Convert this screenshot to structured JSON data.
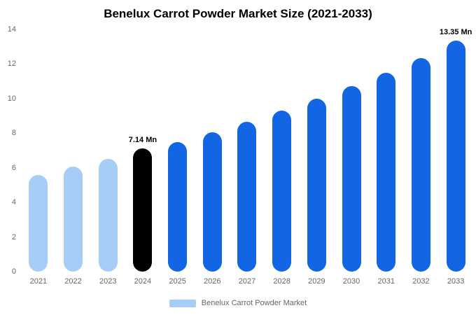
{
  "colors": {
    "historical_light_blue": "#A6CDF5",
    "forecast_blue": "#1266E3",
    "highlight_black": "#000000",
    "axis_text": "#666666",
    "title_text": "#000000",
    "background": "#FFFFFF"
  },
  "chart_data": {
    "type": "bar",
    "title": "Benelux Carrot Powder Market Size (2021-2033)",
    "xlabel": "",
    "ylabel": "",
    "ylim": [
      0,
      14
    ],
    "yticks": [
      0,
      2,
      4,
      6,
      8,
      10,
      12,
      14
    ],
    "grid": false,
    "categories": [
      "2021",
      "2022",
      "2023",
      "2024",
      "2025",
      "2026",
      "2027",
      "2028",
      "2029",
      "2030",
      "2031",
      "2032",
      "2033"
    ],
    "values": [
      5.6,
      6.05,
      6.5,
      7.14,
      7.5,
      8.05,
      8.65,
      9.3,
      10.0,
      10.72,
      11.5,
      12.35,
      13.35
    ],
    "bar_colors": [
      "#A6CDF5",
      "#A6CDF5",
      "#A6CDF5",
      "#000000",
      "#1266E3",
      "#1266E3",
      "#1266E3",
      "#1266E3",
      "#1266E3",
      "#1266E3",
      "#1266E3",
      "#1266E3",
      "#1266E3"
    ],
    "annotations": [
      {
        "index": 3,
        "category": "2024",
        "text": "7.14 Mn"
      },
      {
        "index": 12,
        "category": "2033",
        "text": "13.35 Mn"
      }
    ],
    "legend": {
      "label": "Benelux Carrot Powder Market",
      "position": "bottom",
      "swatch_color": "#A6CDF5"
    }
  }
}
